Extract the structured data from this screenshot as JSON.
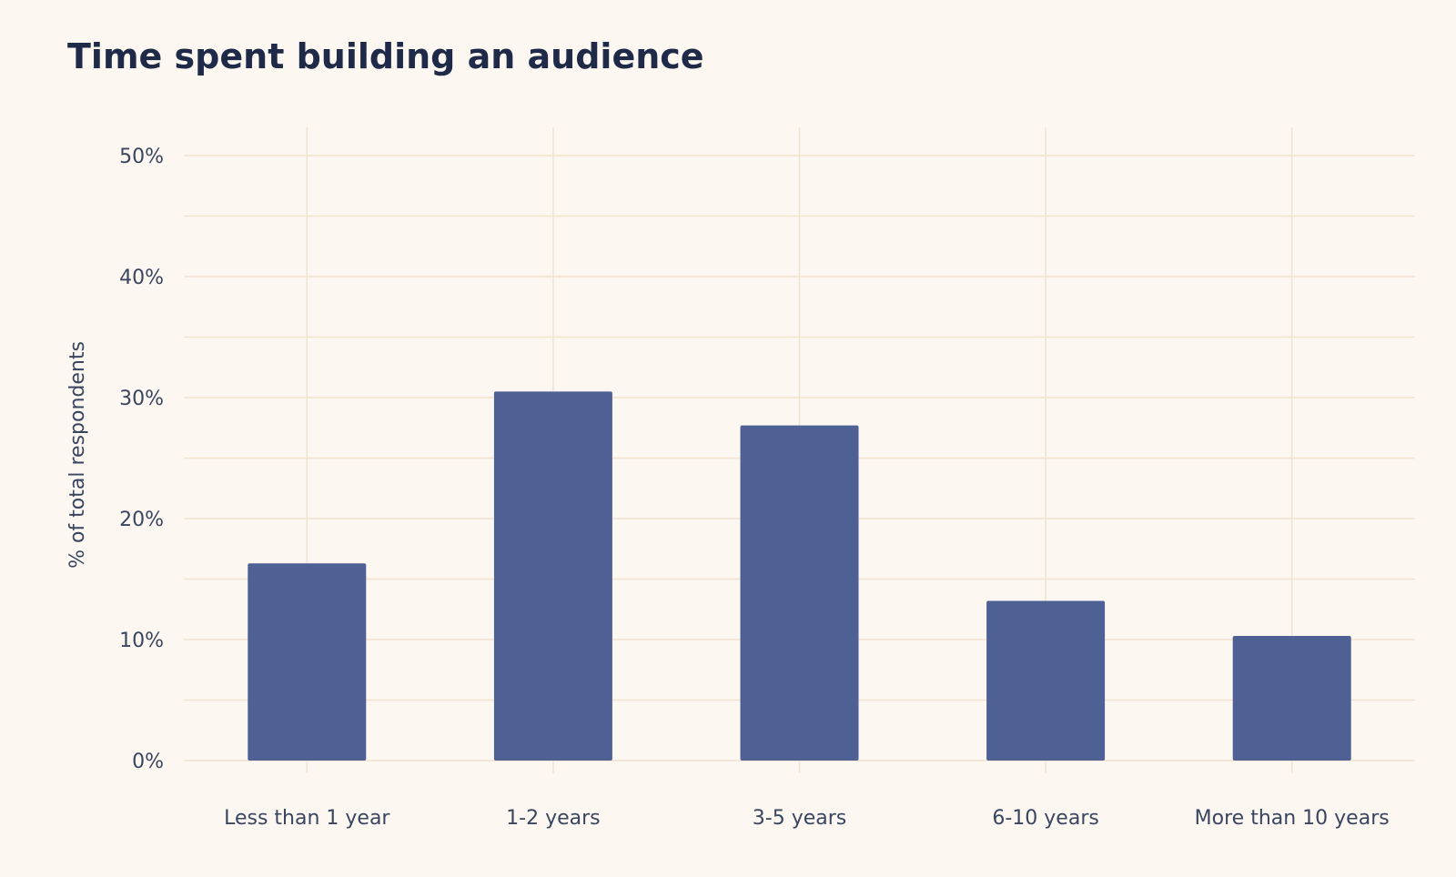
{
  "chart_data": {
    "type": "bar",
    "title": "Time spent building an audience",
    "xlabel": "",
    "ylabel": "% of total respondents",
    "categories": [
      "Less than 1 year",
      "1-2 years",
      "3-5 years",
      "6-10 years",
      "More than 10 years"
    ],
    "values": [
      16.3,
      30.5,
      27.7,
      13.2,
      10.3
    ],
    "ylim": [
      0,
      50
    ],
    "yticks": [
      0,
      10,
      20,
      30,
      40,
      50
    ],
    "ytick_labels": [
      "0%",
      "10%",
      "20%",
      "30%",
      "40%",
      "50%"
    ],
    "grid": true,
    "legend": "none",
    "colors": {
      "bar": "#4f6194",
      "grid": "#f0e4cf",
      "background": "#fcf7f1",
      "title": "#1e2a48",
      "text": "#3a4560"
    }
  }
}
